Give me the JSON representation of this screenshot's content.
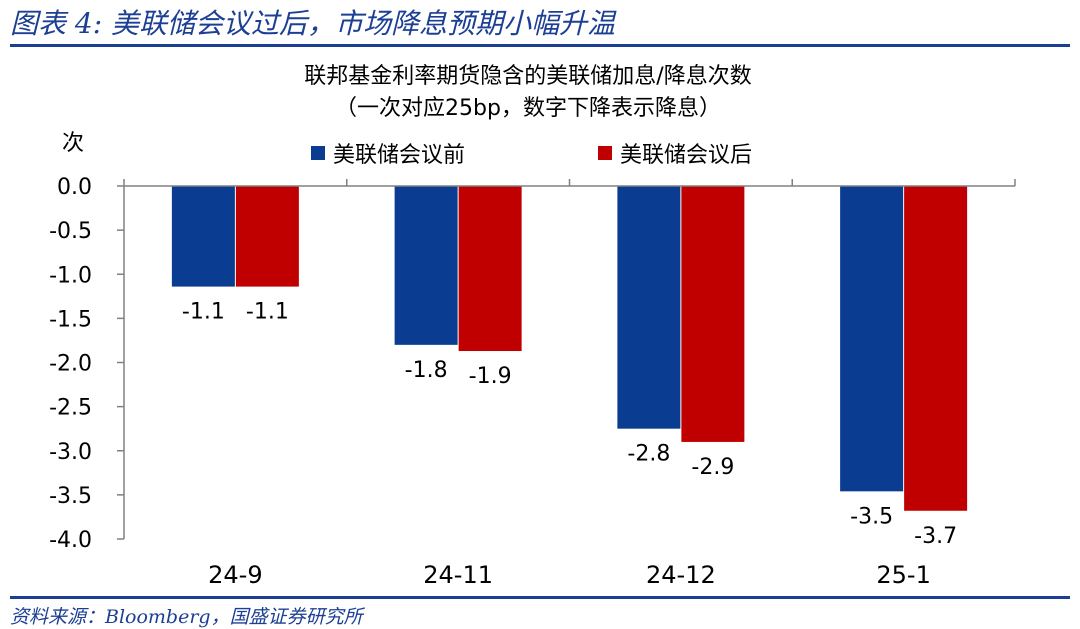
{
  "figure_title": "图表 4: 美联储会议过后，市场降息预期小幅升温",
  "source": "资料来源：Bloomberg，国盛证券研究所",
  "chart_data": {
    "type": "bar",
    "title": "联邦基金利率期货隐含的美联储加息/降息次数",
    "subtitle": "（一次对应25bp，数字下降表示降息）",
    "ylabel": "次",
    "xlabel": "",
    "categories": [
      "24-9",
      "24-11",
      "24-12",
      "25-1"
    ],
    "series": [
      {
        "name": "美联储会议前",
        "color": "#0a3d91",
        "values": [
          -1.14,
          -1.8,
          -2.75,
          -3.46
        ],
        "labels": [
          "-1.1",
          "-1.8",
          "-2.8",
          "-3.5"
        ]
      },
      {
        "name": "美联储会议后",
        "color": "#c00000",
        "values": [
          -1.14,
          -1.87,
          -2.9,
          -3.68
        ],
        "labels": [
          "-1.1",
          "-1.9",
          "-2.9",
          "-3.7"
        ]
      }
    ],
    "ylim": [
      -4.0,
      0.0
    ],
    "yticks": [
      0.0,
      -0.5,
      -1.0,
      -1.5,
      -2.0,
      -2.5,
      -3.0,
      -3.5,
      -4.0
    ],
    "ytick_labels": [
      "0.0",
      "-0.5",
      "-1.0",
      "-1.5",
      "-2.0",
      "-2.5",
      "-3.0",
      "-3.5",
      "-4.0"
    ],
    "legend_position": "top-center",
    "grid": false
  }
}
